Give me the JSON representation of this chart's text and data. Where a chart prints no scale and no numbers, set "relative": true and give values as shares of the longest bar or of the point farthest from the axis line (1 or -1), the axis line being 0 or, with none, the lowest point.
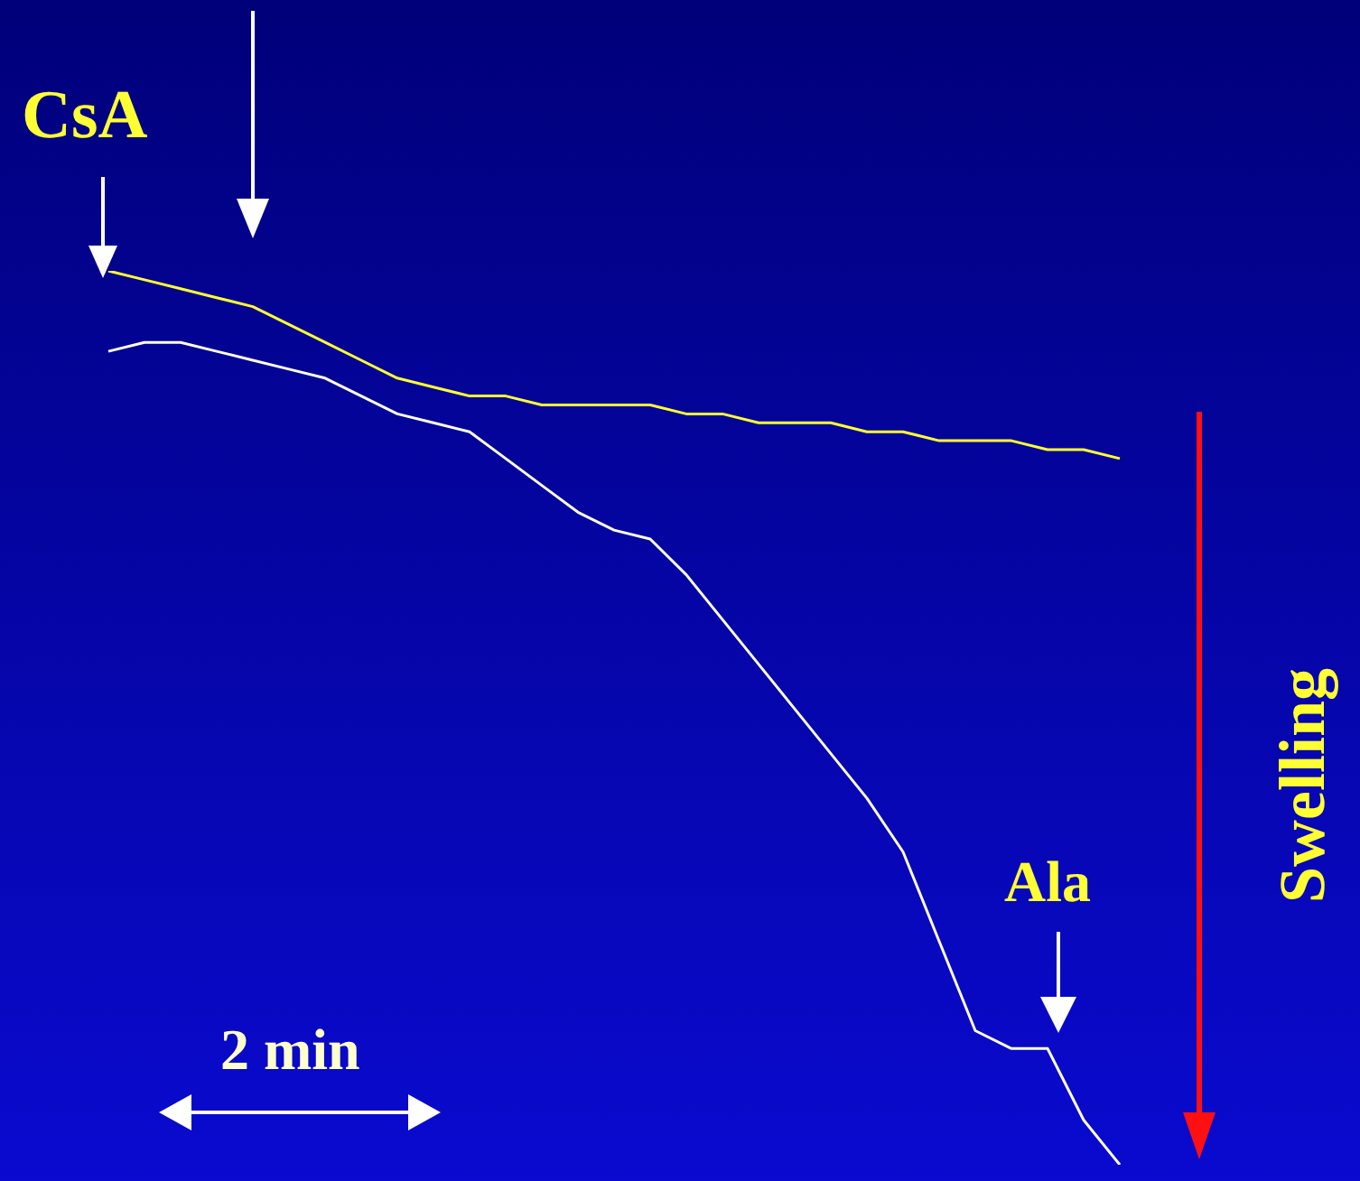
{
  "chart_data": {
    "type": "line",
    "relative": true,
    "categories": [
      null,
      null,
      null,
      null,
      null,
      null,
      null,
      null,
      null,
      null,
      null,
      null,
      null,
      null,
      null,
      null,
      null,
      null,
      null,
      null,
      null,
      null,
      null,
      null,
      null,
      null,
      null,
      null,
      null
    ],
    "series": [
      {
        "color": "#ffff33",
        "values": [
          1,
          0.99,
          0.98,
          0.97,
          0.96,
          0.94,
          0.92,
          0.9,
          0.88,
          0.87,
          0.86,
          0.86,
          0.85,
          0.85,
          0.85,
          0.85,
          0.84,
          0.84,
          0.83,
          0.83,
          0.83,
          0.82,
          0.82,
          0.81,
          0.81,
          0.81,
          0.8,
          0.8,
          0.79
        ]
      },
      {
        "color": "#ffffee",
        "values": [
          0.91,
          0.92,
          0.92,
          0.91,
          0.9,
          0.89,
          0.88,
          0.86,
          0.84,
          0.83,
          0.82,
          0.79,
          0.76,
          0.73,
          0.71,
          0.7,
          0.66,
          0.61,
          0.56,
          0.51,
          0.46,
          0.41,
          0.35,
          0.25,
          0.15,
          0.13,
          0.13,
          0.05,
          0
        ]
      }
    ],
    "annotations": [
      "CsA",
      "Ala",
      "2 min",
      "Swelling"
    ],
    "legend": false
  }
}
